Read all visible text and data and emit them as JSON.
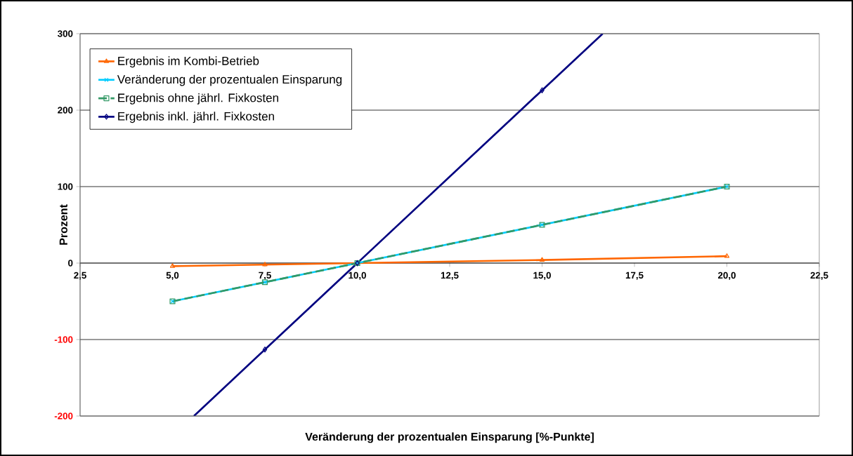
{
  "chart_data": {
    "type": "line",
    "xlabel": "Veränderung der prozentualen Einsparung [%-Punkte]",
    "ylabel": "Prozent",
    "x": [
      5,
      7.5,
      10,
      15,
      20
    ],
    "series": [
      {
        "name": "Ergebnis im Kombi-Betrieb",
        "color": "#ff6600",
        "marker": "triangle",
        "values": [
          -4,
          -2,
          0,
          4,
          9
        ]
      },
      {
        "name": "Veränderung der prozentualen Einsparung",
        "color": "#00ccff",
        "marker": "cross",
        "values": [
          -50,
          -25,
          0,
          50,
          100
        ]
      },
      {
        "name": "Ergebnis ohne jährl. Fixkosten",
        "color": "#339966",
        "marker": "square",
        "line_style": "dashed",
        "values": [
          -50,
          -25,
          0,
          50,
          100
        ]
      },
      {
        "name": "Ergebnis inkl. jährl. Fixkosten",
        "color": "#000080",
        "marker": "diamond",
        "x": [
          5.58,
          7.5,
          10,
          15,
          16.64
        ],
        "values": [
          -200,
          -113,
          0,
          226,
          300
        ]
      }
    ],
    "xlim": [
      2.5,
      22.5
    ],
    "ylim": [
      -200,
      300
    ],
    "xticks": [
      {
        "value": 2.5,
        "label": "2,5"
      },
      {
        "value": 5,
        "label": "5,0"
      },
      {
        "value": 7.5,
        "label": "7,5"
      },
      {
        "value": 10,
        "label": "10,0"
      },
      {
        "value": 12.5,
        "label": "12,5"
      },
      {
        "value": 15,
        "label": "15,0"
      },
      {
        "value": 17.5,
        "label": "17,5"
      },
      {
        "value": 20,
        "label": "20,0"
      },
      {
        "value": 22.5,
        "label": "22,5"
      }
    ],
    "yticks": [
      -200,
      -100,
      0,
      100,
      200,
      300
    ],
    "grid": "y",
    "legend": "top left"
  }
}
